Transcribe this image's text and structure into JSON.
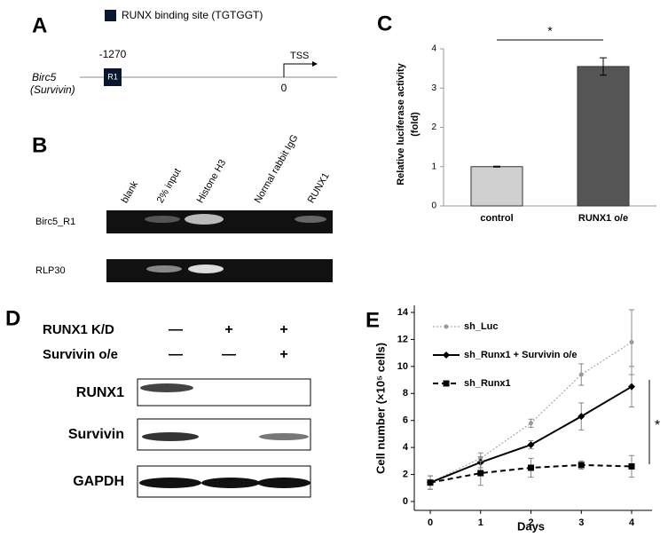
{
  "panels": {
    "A": {
      "letter": "A",
      "legend": "RUNX binding site (TGTGGT)",
      "gene": "Birc5",
      "gene_alias": "(Survivin)",
      "site_position": "-1270",
      "site_label": "R1",
      "tss_label": "TSS",
      "tss_position": "0"
    },
    "B": {
      "letter": "B",
      "lanes": [
        "blank",
        "2% input",
        "Histone H3",
        "Normal rabbit IgG",
        "RUNX1"
      ],
      "rows": [
        "Birc5_R1",
        "RLP30"
      ]
    },
    "C": {
      "letter": "C"
    },
    "D": {
      "letter": "D",
      "conditions": [
        {
          "label": "RUNX1 K/D",
          "signs": [
            "—",
            "+",
            "+"
          ]
        },
        {
          "label": "Survivin o/e",
          "signs": [
            "—",
            "—",
            "+"
          ]
        }
      ],
      "blots": [
        "RUNX1",
        "Survivin",
        "GAPDH"
      ]
    },
    "E": {
      "letter": "E"
    }
  },
  "chart_data": [
    {
      "type": "bar",
      "ylabel": [
        "Relative luciferase activity",
        "(fold)"
      ],
      "categories": [
        "control",
        "RUNX1 o/e"
      ],
      "values": [
        1.0,
        3.55
      ],
      "errors": [
        0.01,
        0.22
      ],
      "colors": [
        "#d0d0d0",
        "#555555"
      ],
      "ylim": [
        0,
        4
      ],
      "yticks": [
        0,
        1,
        2,
        3,
        4
      ],
      "annotation": "*"
    },
    {
      "type": "line",
      "xlabel": "Days",
      "ylabel": "Cell number (×10⁵ cells)",
      "x": [
        0,
        1,
        2,
        3,
        4
      ],
      "xlim": [
        0,
        4
      ],
      "xticks": [
        0,
        1,
        2,
        3,
        4
      ],
      "ylim": [
        0,
        14
      ],
      "yticks": [
        0,
        2,
        4,
        6,
        8,
        10,
        12,
        14
      ],
      "legend": "upper left",
      "annotation": "*",
      "series": [
        {
          "name": "sh_Luc",
          "color": "#999999",
          "line_style": "dotted",
          "marker": "circle",
          "values": [
            1.4,
            3.2,
            5.8,
            9.4,
            11.8
          ],
          "errors": [
            0.5,
            0.4,
            0.3,
            0.8,
            2.4
          ]
        },
        {
          "name": "sh_Runx1 + Survivin o/e",
          "color": "#000000",
          "line_style": "solid",
          "marker": "diamond",
          "values": [
            1.4,
            2.9,
            4.2,
            6.3,
            8.5
          ],
          "errors": [
            0.5,
            0.4,
            0.3,
            1.0,
            1.5
          ]
        },
        {
          "name": "sh_Runx1",
          "color": "#000000",
          "line_style": "dashed",
          "marker": "square",
          "values": [
            1.4,
            2.1,
            2.5,
            2.7,
            2.6
          ],
          "errors": [
            0.5,
            0.9,
            0.7,
            0.3,
            0.8
          ]
        }
      ]
    }
  ]
}
